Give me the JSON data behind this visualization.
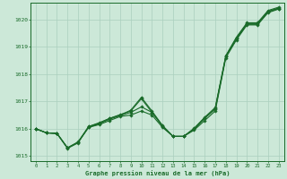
{
  "background_color": "#cce8d8",
  "plot_bg_color": "#cce8d8",
  "grid_color": "#aacfbe",
  "line_color": "#1a6b2a",
  "marker_color": "#1a6b2a",
  "xlabel": "Graphe pression niveau de la mer (hPa)",
  "xlabel_color": "#1a6b2a",
  "tick_color": "#1a6b2a",
  "xlim": [
    -0.5,
    23.5
  ],
  "ylim": [
    1014.8,
    1020.6
  ],
  "yticks": [
    1015,
    1016,
    1017,
    1018,
    1019,
    1020
  ],
  "xticks": [
    0,
    1,
    2,
    3,
    4,
    5,
    6,
    7,
    8,
    9,
    10,
    11,
    12,
    13,
    14,
    15,
    16,
    17,
    18,
    19,
    20,
    21,
    22,
    23
  ],
  "line1": [
    1016.0,
    1015.85,
    1015.83,
    1015.3,
    1015.5,
    1016.05,
    1016.15,
    1016.3,
    1016.45,
    1016.5,
    1016.65,
    1016.5,
    1016.05,
    1015.72,
    1015.72,
    1015.95,
    1016.3,
    1016.65,
    1018.6,
    1019.25,
    1019.8,
    1019.8,
    1020.25,
    1020.38
  ],
  "line2": [
    1016.0,
    1015.85,
    1015.83,
    1015.3,
    1015.5,
    1016.05,
    1016.18,
    1016.35,
    1016.48,
    1016.6,
    1016.8,
    1016.6,
    1016.1,
    1015.72,
    1015.72,
    1015.98,
    1016.38,
    1016.72,
    1018.65,
    1019.3,
    1019.82,
    1019.82,
    1020.28,
    1020.4
  ],
  "line3": [
    1016.0,
    1015.85,
    1015.83,
    1015.3,
    1015.52,
    1016.08,
    1016.22,
    1016.38,
    1016.52,
    1016.65,
    1017.1,
    1016.6,
    1016.1,
    1015.72,
    1015.72,
    1016.0,
    1016.4,
    1016.75,
    1018.65,
    1019.32,
    1019.85,
    1019.85,
    1020.3,
    1020.42
  ],
  "line4": [
    1016.0,
    1015.85,
    1015.83,
    1015.28,
    1015.48,
    1016.08,
    1016.2,
    1016.38,
    1016.5,
    1016.68,
    1017.15,
    1016.65,
    1016.12,
    1015.72,
    1015.72,
    1016.02,
    1016.42,
    1016.78,
    1018.68,
    1019.35,
    1019.88,
    1019.88,
    1020.33,
    1020.45
  ]
}
